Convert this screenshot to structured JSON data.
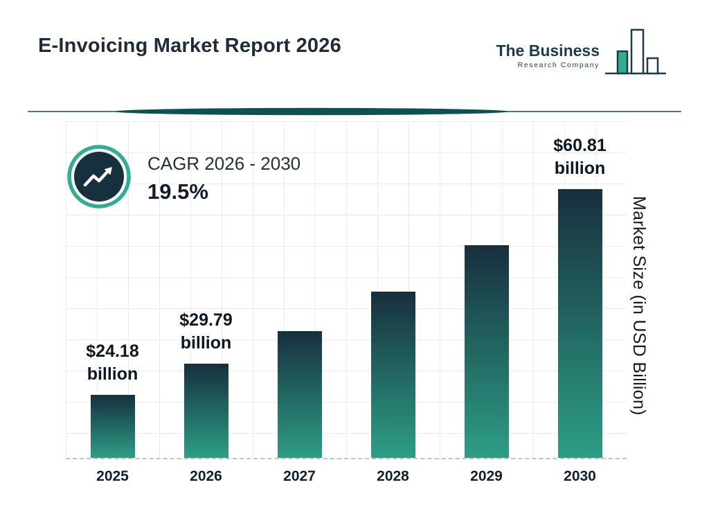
{
  "header": {
    "title": "E-Invoicing Market Report 2026",
    "logo": {
      "name": "The Business",
      "subtitle": "Research Company"
    }
  },
  "cagr_badge": {
    "label": "CAGR 2026 - 2030",
    "value": "19.5%"
  },
  "chart_data": {
    "type": "bar",
    "title": "E-Invoicing Market Report 2026",
    "categories": [
      "2025",
      "2026",
      "2027",
      "2028",
      "2029",
      "2030"
    ],
    "values": [
      24.18,
      29.79,
      35.6,
      42.54,
      50.84,
      60.81
    ],
    "value_labels": [
      {
        "amount": "$24.18",
        "unit": "billion",
        "visible": true
      },
      {
        "amount": "$29.79",
        "unit": "billion",
        "visible": true
      },
      {
        "amount": "",
        "unit": "",
        "visible": false
      },
      {
        "amount": "",
        "unit": "",
        "visible": false
      },
      {
        "amount": "",
        "unit": "",
        "visible": false
      },
      {
        "amount": "$60.81",
        "unit": "billion",
        "visible": true
      }
    ],
    "xlabel": "",
    "ylabel": "Market Size (in USD Billion)",
    "ylim": [
      0,
      65
    ],
    "grid": true,
    "legend": false
  },
  "colors": {
    "title_text": "#1e2b38",
    "bar_gradient_top": "#172f3d",
    "bar_gradient_bottom": "#2d9e86",
    "accent_teal": "#2fae92",
    "brand_navy": "#1c3b4e",
    "divider_teal": "#0f5152",
    "grid_line": "#ececec"
  }
}
